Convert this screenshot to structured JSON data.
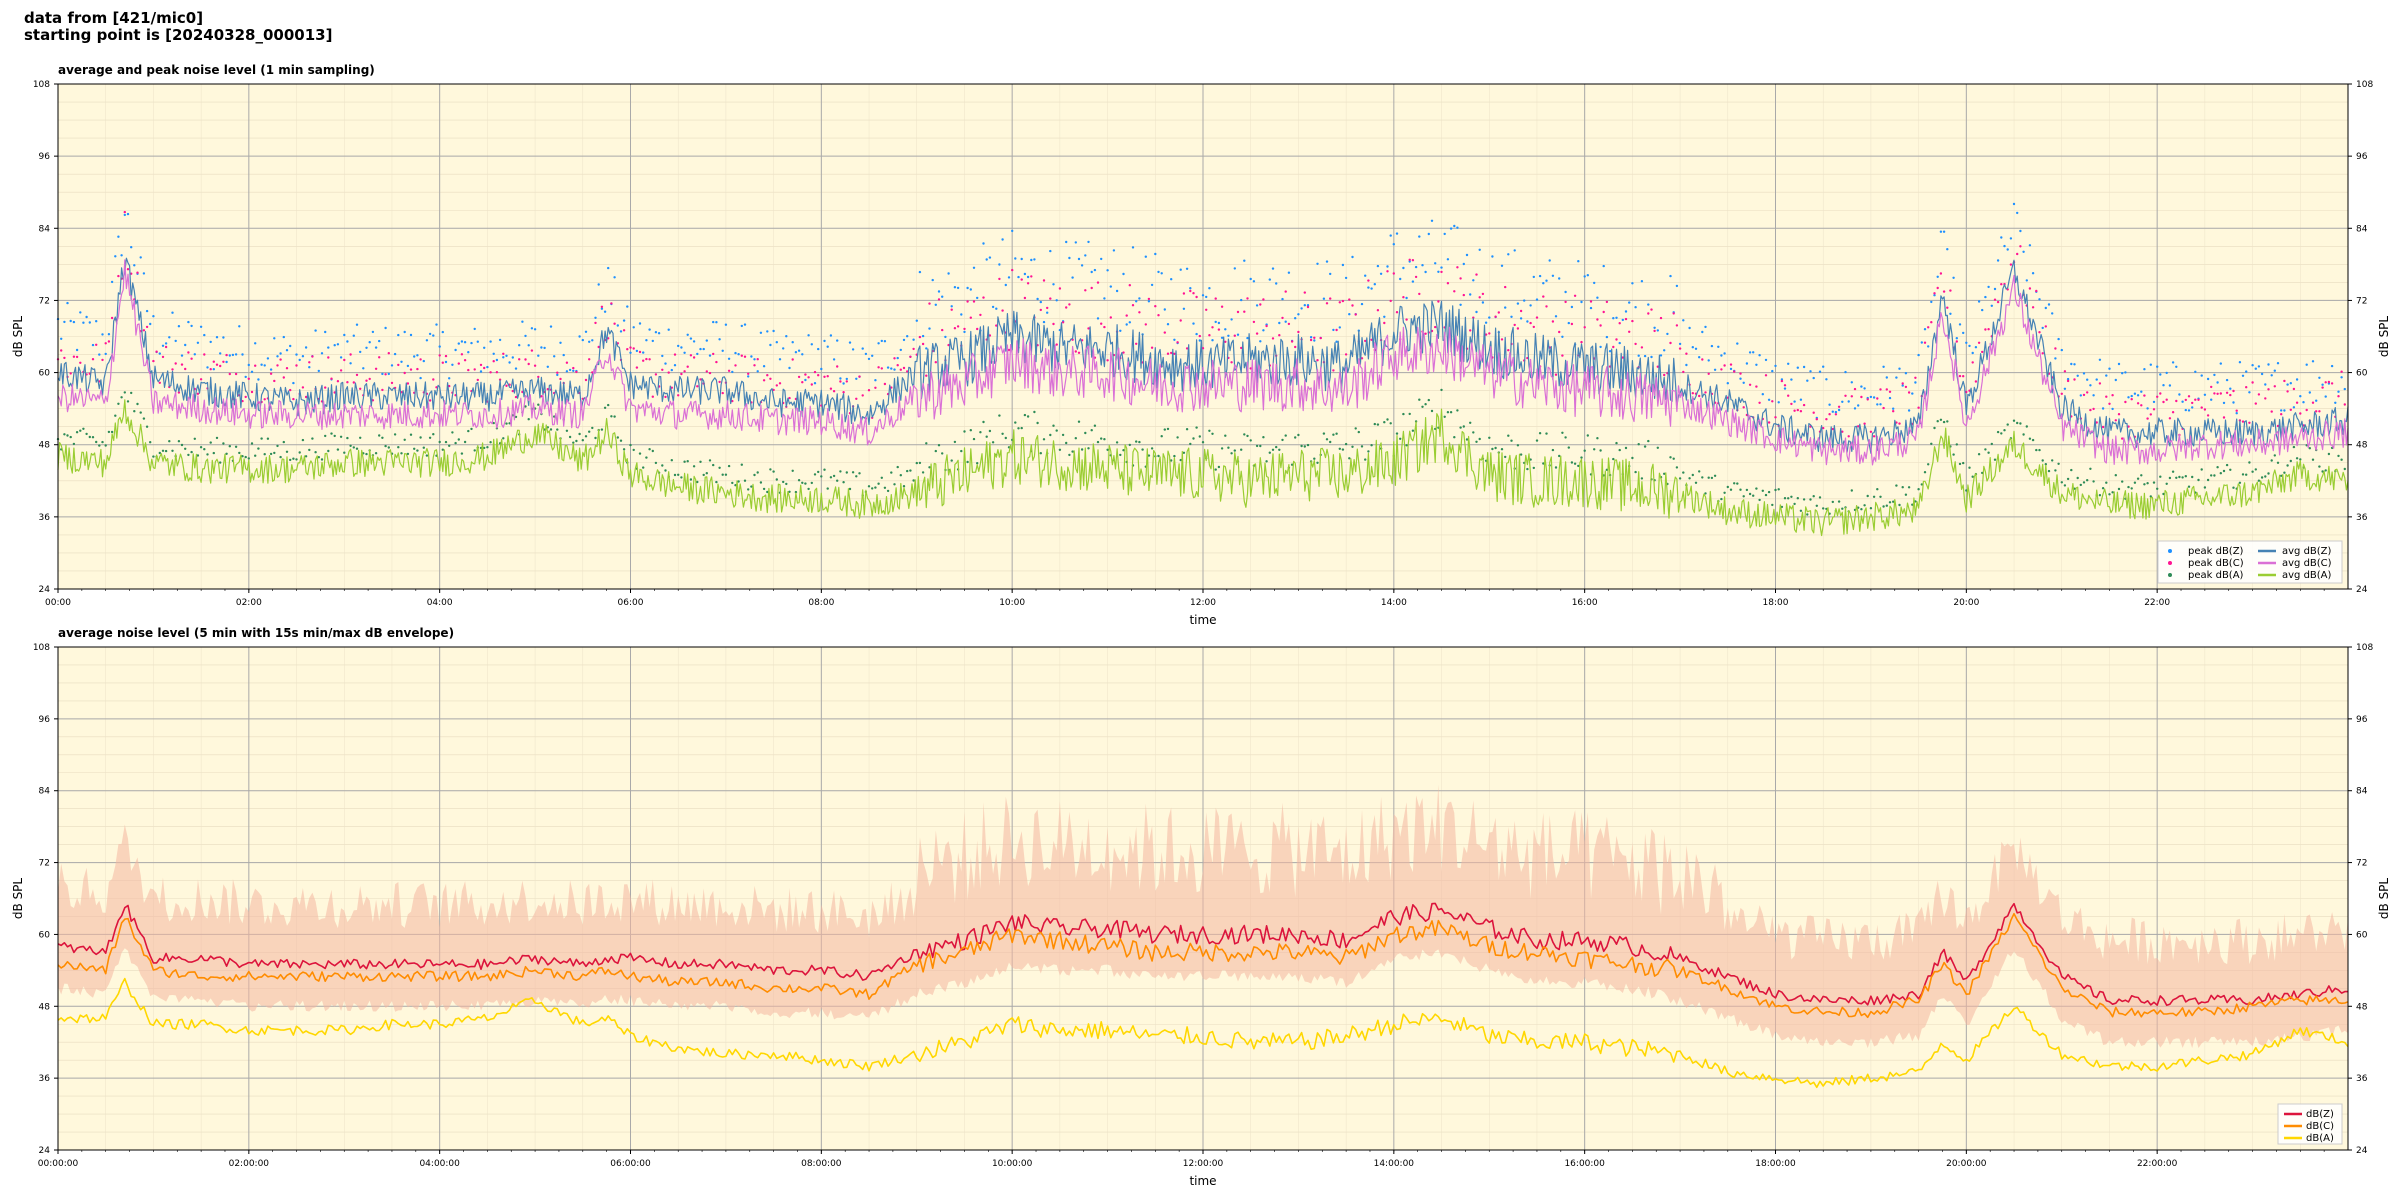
{
  "header": {
    "line1": "data from [421/mic0]",
    "line2": "starting point is [20240328_000013]"
  },
  "colors": {
    "panel_bg": "#fff8dc",
    "grid": "#a9a9a9",
    "dbz": "#4682b4",
    "dbc": "#da70d6",
    "dba": "#9acd32",
    "peak_z": "#1e90ff",
    "peak_c": "#ff1493",
    "peak_a": "#2e8b57",
    "env_z": "#dc143c",
    "env_c": "#ff8c00",
    "env_a": "#ffd700",
    "envelope": "#f4b6a0"
  },
  "chart_data": [
    {
      "type": "line",
      "title": "average and peak noise level (1 min sampling)",
      "xlabel": "time",
      "ylabel": "dB SPL",
      "ylim": [
        24,
        108
      ],
      "yticks": [
        24,
        36,
        48,
        60,
        72,
        84,
        96,
        108
      ],
      "xlim_hours": [
        0,
        24
      ],
      "xticks": [
        "00:00",
        "02:00",
        "04:00",
        "06:00",
        "08:00",
        "10:00",
        "12:00",
        "14:00",
        "16:00",
        "18:00",
        "20:00",
        "22:00"
      ],
      "grid": true,
      "legend_position": "bottom-right",
      "x": [
        0,
        0.5,
        0.7,
        1,
        1.5,
        2,
        2.5,
        3,
        3.5,
        4,
        4.5,
        5,
        5.5,
        5.75,
        6,
        6.5,
        7,
        7.5,
        8,
        8.5,
        9,
        9.5,
        10,
        10.5,
        11,
        11.5,
        12,
        12.5,
        13,
        13.5,
        14,
        14.5,
        15,
        15.5,
        16,
        16.5,
        17,
        17.5,
        18,
        18.5,
        19,
        19.5,
        19.75,
        20,
        20.5,
        21,
        21.5,
        22,
        22.5,
        23,
        23.5,
        24
      ],
      "series": [
        {
          "name": "avg dB(Z)",
          "kind": "line",
          "color_key": "dbz",
          "values": [
            60,
            58,
            79,
            59,
            57,
            56,
            55,
            56,
            56,
            56,
            56,
            57,
            56,
            67,
            58,
            57,
            57,
            55,
            55,
            53,
            60,
            62,
            66,
            64,
            64,
            62,
            61,
            62,
            62,
            61,
            67,
            68,
            64,
            62,
            61,
            60,
            58,
            55,
            51,
            49,
            49,
            51,
            73,
            54,
            77,
            54,
            50,
            50,
            50,
            50,
            51,
            52
          ]
        },
        {
          "name": "avg dB(C)",
          "kind": "line",
          "color_key": "dbc",
          "values": [
            56,
            55,
            77,
            55,
            54,
            53,
            53,
            53,
            53,
            53,
            53,
            54,
            53,
            64,
            54,
            53,
            53,
            52,
            52,
            50,
            56,
            58,
            62,
            60,
            60,
            58,
            58,
            58,
            58,
            57,
            63,
            64,
            60,
            58,
            57,
            56,
            55,
            52,
            49,
            47,
            47,
            49,
            70,
            51,
            74,
            51,
            47,
            47,
            48,
            48,
            49,
            50
          ]
        },
        {
          "name": "avg dB(A)",
          "kind": "line",
          "color_key": "dba",
          "values": [
            46,
            45,
            54,
            45,
            44,
            44,
            44,
            45,
            45,
            45,
            46,
            50,
            45,
            50,
            43,
            41,
            40,
            39,
            39,
            38,
            40,
            43,
            46,
            45,
            44,
            43,
            43,
            42,
            43,
            43,
            45,
            50,
            43,
            42,
            42,
            41,
            40,
            37,
            36,
            35,
            36,
            37,
            50,
            39,
            48,
            40,
            38,
            38,
            39,
            40,
            43,
            42
          ]
        },
        {
          "name": "peak dB(Z)",
          "kind": "scatter",
          "color_key": "peak_z",
          "offset_range": [
            3,
            18
          ]
        },
        {
          "name": "peak dB(C)",
          "kind": "scatter",
          "color_key": "peak_c",
          "offset_range": [
            2,
            16
          ]
        },
        {
          "name": "peak dB(A)",
          "kind": "scatter",
          "color_key": "peak_a",
          "offset_range": [
            1,
            8
          ]
        }
      ],
      "legend": [
        "peak dB(Z)",
        "peak dB(C)",
        "peak dB(A)",
        "avg dB(Z)",
        "avg dB(C)",
        "avg dB(A)"
      ]
    },
    {
      "type": "line",
      "title": "average noise level (5 min with 15s min/max dB envelope)",
      "xlabel": "time",
      "ylabel": "dB SPL",
      "ylim": [
        24,
        108
      ],
      "yticks": [
        24,
        36,
        48,
        60,
        72,
        84,
        96,
        108
      ],
      "xlim_hours": [
        0,
        24
      ],
      "xticks": [
        "00:00:00",
        "02:00:00",
        "04:00:00",
        "06:00:00",
        "08:00:00",
        "10:00:00",
        "12:00:00",
        "14:00:00",
        "16:00:00",
        "18:00:00",
        "20:00:00",
        "22:00:00"
      ],
      "grid": true,
      "legend_position": "bottom-right",
      "x": [
        0,
        0.5,
        0.7,
        1,
        1.5,
        2,
        2.5,
        3,
        3.5,
        4,
        4.5,
        5,
        5.5,
        5.75,
        6,
        6.5,
        7,
        7.5,
        8,
        8.5,
        9,
        9.5,
        10,
        10.5,
        11,
        11.5,
        12,
        12.5,
        13,
        13.5,
        14,
        14.5,
        15,
        15.5,
        16,
        16.5,
        17,
        17.5,
        18,
        18.5,
        19,
        19.5,
        19.75,
        20,
        20.5,
        21,
        21.5,
        22,
        22.5,
        23,
        23.5,
        24
      ],
      "series": [
        {
          "name": "dB(Z)",
          "kind": "line",
          "color_key": "env_z",
          "values": [
            58,
            57,
            65,
            56,
            56,
            55,
            55,
            55,
            55,
            55,
            55,
            56,
            55,
            56,
            56,
            55,
            55,
            54,
            54,
            53,
            57,
            59,
            62,
            61,
            61,
            60,
            60,
            60,
            60,
            59,
            63,
            64,
            61,
            59,
            59,
            58,
            56,
            53,
            50,
            49,
            49,
            50,
            57,
            52,
            65,
            53,
            49,
            49,
            49,
            49,
            50,
            51
          ]
        },
        {
          "name": "dB(C)",
          "kind": "line",
          "color_key": "env_c",
          "values": [
            55,
            54,
            63,
            54,
            53,
            53,
            53,
            53,
            53,
            53,
            53,
            54,
            53,
            54,
            53,
            52,
            52,
            51,
            51,
            50,
            55,
            57,
            60,
            59,
            58,
            57,
            57,
            57,
            57,
            56,
            60,
            61,
            58,
            57,
            56,
            55,
            54,
            51,
            48,
            47,
            47,
            49,
            55,
            50,
            63,
            51,
            47,
            47,
            47,
            48,
            49,
            49
          ]
        },
        {
          "name": "dB(A)",
          "kind": "line",
          "color_key": "env_a",
          "values": [
            46,
            46,
            52,
            45,
            45,
            44,
            44,
            44,
            45,
            45,
            46,
            49,
            45,
            46,
            43,
            41,
            40,
            40,
            39,
            38,
            40,
            42,
            45,
            44,
            44,
            43,
            43,
            42,
            42,
            43,
            45,
            46,
            43,
            42,
            42,
            41,
            40,
            37,
            36,
            35,
            36,
            37,
            42,
            39,
            48,
            40,
            38,
            38,
            39,
            40,
            44,
            42
          ]
        },
        {
          "name": "min/max envelope",
          "kind": "band",
          "color_key": "envelope",
          "lower_offset": 6,
          "upper_offset_range": [
            6,
            22
          ]
        }
      ],
      "legend": [
        "dB(Z)",
        "dB(C)",
        "dB(A)"
      ]
    }
  ]
}
